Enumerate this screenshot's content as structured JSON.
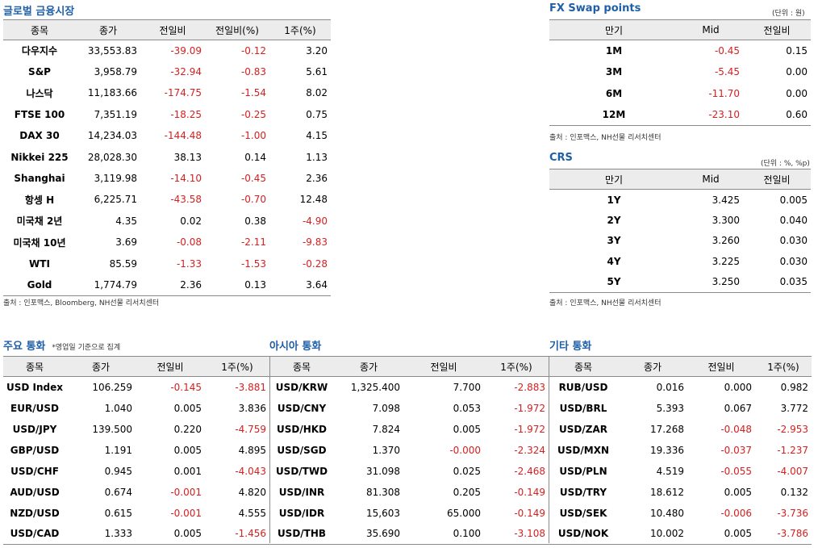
{
  "global_market": {
    "title": "글로벌 금융시장",
    "headers": [
      "종목",
      "종가",
      "전일비",
      "전일비(%)",
      "1주(%)"
    ],
    "rows": [
      [
        "다우지수",
        "33,553.83",
        "-39.09",
        "-0.12",
        "3.20"
      ],
      [
        "S&P",
        "3,958.79",
        "-32.94",
        "-0.83",
        "5.61"
      ],
      [
        "나스닥",
        "11,183.66",
        "-174.75",
        "-1.54",
        "8.02"
      ],
      [
        "FTSE 100",
        "7,351.19",
        "-18.25",
        "-0.25",
        "0.75"
      ],
      [
        "DAX 30",
        "14,234.03",
        "-144.48",
        "-1.00",
        "4.15"
      ],
      [
        "Nikkei 225",
        "28,028.30",
        "38.13",
        "0.14",
        "1.13"
      ],
      [
        "Shanghai",
        "3,119.98",
        "-14.10",
        "-0.45",
        "2.36"
      ],
      [
        "항셍 H",
        "6,225.71",
        "-43.58",
        "-0.70",
        "12.48"
      ],
      [
        "미국채 2년",
        "4.35",
        "0.02",
        "0.38",
        "-4.90"
      ],
      [
        "미국채 10년",
        "3.69",
        "-0.08",
        "-2.11",
        "-9.83"
      ],
      [
        "WTI",
        "85.59",
        "-1.33",
        "-1.53",
        "-0.28"
      ],
      [
        "Gold",
        "1,774.79",
        "2.36",
        "0.13",
        "3.64"
      ]
    ],
    "source": "출처 : 인포맥스, Bloomberg, NH선물 리서치센터"
  },
  "fx_swap": {
    "title": "FX Swap points",
    "unit": "(단위 : 원)",
    "headers": [
      "만기",
      "Mid",
      "전일비"
    ],
    "rows": [
      [
        "1M",
        "-0.45",
        "0.15"
      ],
      [
        "3M",
        "-5.45",
        "0.00"
      ],
      [
        "6M",
        "-11.70",
        "0.00"
      ],
      [
        "12M",
        "-23.10",
        "0.60"
      ]
    ],
    "source": "출처 : 인포맥스, NH선물 리서치센터"
  },
  "crs": {
    "title": "CRS",
    "unit": "(단위 : %, %p)",
    "headers": [
      "만기",
      "Mid",
      "전일비"
    ],
    "rows": [
      [
        "1Y",
        "3.425",
        "0.005"
      ],
      [
        "2Y",
        "3.300",
        "0.040"
      ],
      [
        "3Y",
        "3.260",
        "0.030"
      ],
      [
        "4Y",
        "3.225",
        "0.030"
      ],
      [
        "5Y",
        "3.250",
        "0.035"
      ]
    ],
    "source": "출처 : 인포맥스, NH선물 리서치센터"
  },
  "currencies": {
    "major_title": "주요 통화",
    "major_note": "*영업일 기준으로 집계",
    "asia_title": "아시아 통화",
    "other_title": "기타 통화",
    "major_headers": [
      "종목",
      "종가",
      "전일비",
      "1주(%)"
    ],
    "asia_headers": [
      "종목",
      "종가",
      "전일비",
      "1주(%)"
    ],
    "other_headers": [
      "종목",
      "종가",
      "전일비",
      "1주(%)"
    ],
    "rows": [
      [
        "USD Index",
        "106.259",
        "-0.145",
        "-3.881",
        "USD/KRW",
        "1,325.400",
        "7.700",
        "-2.883",
        "RUB/USD",
        "0.016",
        "0.000",
        "0.982"
      ],
      [
        "EUR/USD",
        "1.040",
        "0.005",
        "3.836",
        "USD/CNY",
        "7.098",
        "0.053",
        "-1.972",
        "USD/BRL",
        "5.393",
        "0.067",
        "3.772"
      ],
      [
        "USD/JPY",
        "139.500",
        "0.220",
        "-4.759",
        "USD/HKD",
        "7.824",
        "0.005",
        "-1.972",
        "USD/ZAR",
        "17.268",
        "-0.048",
        "-2.953"
      ],
      [
        "GBP/USD",
        "1.191",
        "0.005",
        "4.895",
        "USD/SGD",
        "1.370",
        "-0.000",
        "-2.324",
        "USD/MXN",
        "19.336",
        "-0.037",
        "-1.237"
      ],
      [
        "USD/CHF",
        "0.945",
        "0.001",
        "-4.043",
        "USD/TWD",
        "31.098",
        "0.025",
        "-2.468",
        "USD/PLN",
        "4.519",
        "-0.055",
        "-4.007"
      ],
      [
        "AUD/USD",
        "0.674",
        "-0.001",
        "4.820",
        "USD/INR",
        "81.308",
        "0.205",
        "-0.149",
        "USD/TRY",
        "18.612",
        "0.005",
        "0.132"
      ],
      [
        "NZD/USD",
        "0.615",
        "-0.001",
        "4.555",
        "USD/IDR",
        "15,603",
        "65.000",
        "-0.149",
        "USD/SEK",
        "10.480",
        "-0.006",
        "-3.736"
      ],
      [
        "USD/CAD",
        "1.333",
        "0.005",
        "-1.456",
        "USD/THB",
        "35.690",
        "0.100",
        "-3.108",
        "USD/NOK",
        "10.002",
        "0.005",
        "-3.786"
      ]
    ]
  },
  "colors": {
    "title": "#1f5fa8",
    "negative": "#d42020",
    "header_bg": "#ececec"
  }
}
